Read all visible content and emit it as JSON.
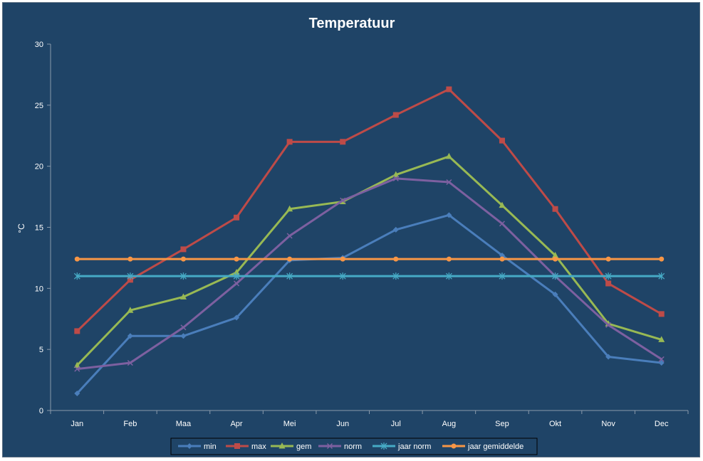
{
  "chart_data": {
    "type": "line",
    "title": "Temperatuur",
    "xlabel": "",
    "ylabel": "°C",
    "ylim": [
      0,
      30
    ],
    "yticks": [
      0,
      5,
      10,
      15,
      20,
      25,
      30
    ],
    "grid": false,
    "legend_position": "bottom",
    "background": "#1f4467",
    "categories": [
      "Jan",
      "Feb",
      "Maa",
      "Apr",
      "Mei",
      "Jun",
      "Jul",
      "Aug",
      "Sep",
      "Okt",
      "Nov",
      "Dec"
    ],
    "series": [
      {
        "name": "min",
        "color": "#4a7ebb",
        "marker": "diamond",
        "values": [
          1.4,
          6.1,
          6.1,
          7.6,
          12.3,
          12.5,
          14.8,
          16.0,
          12.7,
          9.5,
          4.4,
          3.9
        ]
      },
      {
        "name": "max",
        "color": "#be4b48",
        "marker": "square",
        "values": [
          6.5,
          10.7,
          13.2,
          15.8,
          22.0,
          22.0,
          24.2,
          26.3,
          22.1,
          16.5,
          10.4,
          7.9
        ]
      },
      {
        "name": "gem",
        "color": "#98b954",
        "marker": "triangle",
        "values": [
          3.7,
          8.2,
          9.3,
          11.3,
          16.5,
          17.1,
          19.3,
          20.8,
          16.8,
          12.7,
          7.1,
          5.8
        ]
      },
      {
        "name": "norm",
        "color": "#7d60a0",
        "marker": "x",
        "values": [
          3.4,
          3.9,
          6.8,
          10.4,
          14.3,
          17.2,
          19.0,
          18.7,
          15.3,
          11.0,
          7.0,
          4.2
        ]
      },
      {
        "name": "jaar norm",
        "color": "#46aac5",
        "marker": "star",
        "values": [
          11.0,
          11.0,
          11.0,
          11.0,
          11.0,
          11.0,
          11.0,
          11.0,
          11.0,
          11.0,
          11.0,
          11.0
        ]
      },
      {
        "name": "jaar gemiddelde",
        "color": "#f79646",
        "marker": "circle",
        "values": [
          12.4,
          12.4,
          12.4,
          12.4,
          12.4,
          12.4,
          12.4,
          12.4,
          12.4,
          12.4,
          12.4,
          12.4
        ]
      }
    ]
  }
}
